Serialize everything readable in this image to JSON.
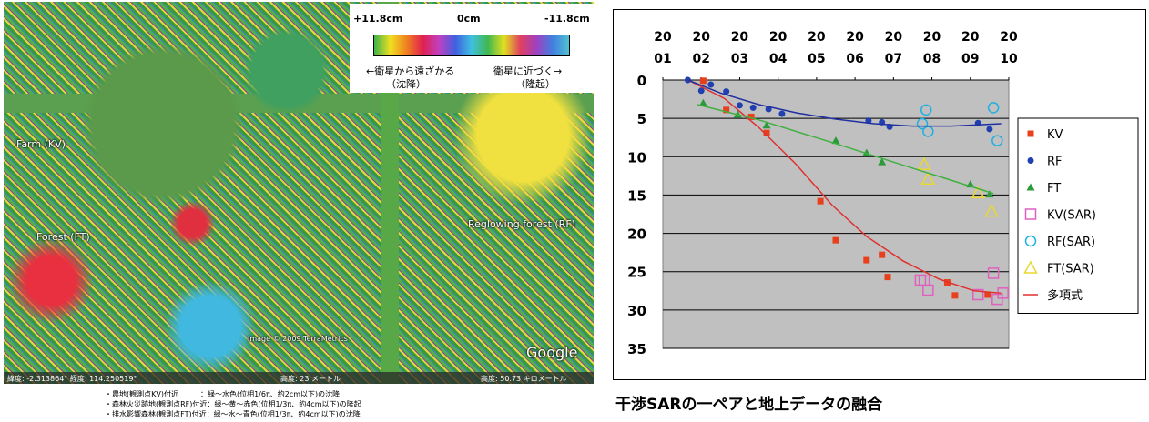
{
  "map": {
    "scale_max": "+11.8cm",
    "scale_mid": "0cm",
    "scale_min": "-11.8cm",
    "legend_away": "←衛星から遠ざかる",
    "legend_away_note": "（沈降）",
    "legend_toward": "衛星に近づく→",
    "legend_toward_note": "（隆起）",
    "labels": [
      "Farm (KV)",
      "Forest (FT)",
      "Reglowing forest (RF)"
    ],
    "copyright": "Image © 2009 TerraMetrics",
    "brand": "Google",
    "status_position": "緯度: -2.313864°  経度: 114.250519°",
    "status_elevation": "高度: 23 メートル",
    "status_altitude": "高度: 50.73 キロメートル",
    "caption": [
      "・農地(観測点KV)付近　　　：緑〜水色(位相1/6π、約2cm以下)の沈降",
      "・森林火災跡地(観測点RF)付近：緑〜黄〜赤色(位相1/3π、約4cm以下)の隆起",
      "・排水影響森林(観測点FT)付近：緑〜水〜青色(位相1/3π、約4cm以下)の沈降"
    ]
  },
  "chart_data": {
    "type": "scatter",
    "caption": "干渉SARの一ペアと地上データの融合",
    "xlim": [
      2001,
      2010
    ],
    "xticks": [
      2001,
      2002,
      2003,
      2004,
      2005,
      2006,
      2007,
      2008,
      2009,
      2010
    ],
    "ylim": [
      0,
      35
    ],
    "yticks": [
      0,
      5,
      10,
      15,
      20,
      25,
      30,
      35
    ],
    "y_inverted": true,
    "grid": true,
    "legend": "right",
    "series": [
      {
        "name": "KV",
        "color": "#e8401c",
        "marker": "square",
        "x": [
          2002.05,
          2002.65,
          2003.3,
          2003.7,
          2005.1,
          2005.5,
          2006.3,
          2006.7,
          2006.85,
          2008.4,
          2008.6,
          2009.45
        ],
        "values": [
          0.1,
          3.9,
          4.8,
          6.9,
          15.8,
          20.9,
          23.5,
          22.8,
          25.7,
          26.4,
          28.1,
          28
        ]
      },
      {
        "name": "RF",
        "color": "#2040b0",
        "marker": "circle",
        "x": [
          2001.65,
          2002,
          2002.25,
          2002.65,
          2003,
          2003.35,
          2003.75,
          2004.1,
          2006.35,
          2006.7,
          2006.9,
          2009.2,
          2009.5
        ],
        "values": [
          0,
          1.4,
          0.6,
          1.5,
          3.3,
          3.6,
          3.8,
          4.4,
          5.3,
          5.5,
          6.1,
          5.6,
          6.4
        ]
      },
      {
        "name": "FT",
        "color": "#2a9a3a",
        "marker": "triangle",
        "x": [
          2002.05,
          2002.95,
          2003.7,
          2005.5,
          2006.3,
          2006.7,
          2009,
          2009.5
        ],
        "values": [
          3,
          4.5,
          5.9,
          7.9,
          9.5,
          10.7,
          13.6,
          14.9
        ]
      },
      {
        "name": "KV(SAR)",
        "color": "#e060c0",
        "marker": "square-open",
        "x": [
          2007.7,
          2007.8,
          2007.9,
          2009.2,
          2009.6,
          2009.7,
          2009.85
        ],
        "values": [
          26.1,
          26.2,
          27.4,
          28,
          25.2,
          28.6,
          27.8
        ]
      },
      {
        "name": "RF(SAR)",
        "color": "#20b0e0",
        "marker": "circle-open",
        "x": [
          2007.75,
          2007.9,
          2007.85,
          2009.6,
          2009.7
        ],
        "values": [
          5.7,
          6.7,
          3.9,
          3.6,
          7.9
        ]
      },
      {
        "name": "FT(SAR)",
        "color": "#e8d830",
        "marker": "triangle-open",
        "x": [
          2007.8,
          2007.9,
          2009.2,
          2009.55
        ],
        "values": [
          11,
          12.9,
          14.7,
          17.1
        ]
      },
      {
        "name": "多項式",
        "color": "#e03030",
        "marker": "line",
        "x": [
          2001.65,
          2002.6,
          2003.5,
          2004.45,
          2005.4,
          2006.3,
          2007.25,
          2008.2,
          2009.1,
          2009.8
        ],
        "values": [
          0,
          2.4,
          6.2,
          10.9,
          16.3,
          20.4,
          23.6,
          26,
          27.5,
          27.8
        ]
      },
      {
        "color": "#2030a0",
        "marker": "line",
        "x": [
          2001.65,
          2002.5,
          2003.5,
          2004.5,
          2005.5,
          2006.5,
          2007.5,
          2008.5,
          2009.8
        ],
        "values": [
          0,
          1.7,
          3.2,
          4.3,
          5.1,
          5.7,
          6,
          6,
          5.7
        ]
      },
      {
        "color": "#40b040",
        "marker": "line",
        "x": [
          2001.9,
          2003.5,
          2005.5,
          2007.5,
          2009.6
        ],
        "values": [
          3.2,
          5.2,
          8.3,
          11.5,
          14.8
        ]
      }
    ]
  }
}
